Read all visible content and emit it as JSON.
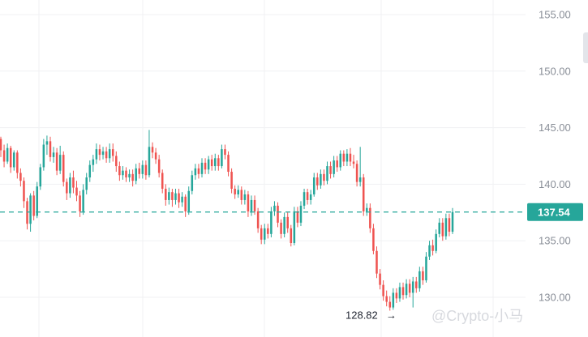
{
  "chart_data": {
    "type": "candlestick",
    "y_axis": {
      "ticks": [
        "155.00",
        "150.00",
        "145.00",
        "140.00",
        "135.00",
        "130.00"
      ],
      "ylim": [
        128.0,
        156.0
      ]
    },
    "grid": "vertical and horizontal, light",
    "colors": {
      "up": "#26a69a",
      "down": "#ef5350",
      "last_price": "#26a69a",
      "grid": "#f0f1f3"
    },
    "last_price": {
      "value": 137.54,
      "label": "137.54"
    },
    "low_marker": {
      "value": 128.82,
      "label": "128.82"
    },
    "candles": [
      [
        144.0,
        143.0,
        144.2,
        142.4
      ],
      [
        143.0,
        142.0,
        143.5,
        141.5
      ],
      [
        142.0,
        143.2,
        143.6,
        141.8
      ],
      [
        143.2,
        141.5,
        143.4,
        141.0
      ],
      [
        141.5,
        142.8,
        143.0,
        141.2
      ],
      [
        142.8,
        141.0,
        143.0,
        140.5
      ],
      [
        141.0,
        140.3,
        141.4,
        139.8
      ],
      [
        140.3,
        138.5,
        140.6,
        137.9
      ],
      [
        138.5,
        136.5,
        138.8,
        136.0
      ],
      [
        136.5,
        139.0,
        139.2,
        135.8
      ],
      [
        139.0,
        137.2,
        139.4,
        136.8
      ],
      [
        137.2,
        139.8,
        140.2,
        137.0
      ],
      [
        139.8,
        141.5,
        141.8,
        139.5
      ],
      [
        141.5,
        143.5,
        144.0,
        141.2
      ],
      [
        143.5,
        143.8,
        144.3,
        142.6
      ],
      [
        143.8,
        142.4,
        144.2,
        142.0
      ],
      [
        142.4,
        142.8,
        143.3,
        141.9
      ],
      [
        142.8,
        141.2,
        143.2,
        140.8
      ],
      [
        141.2,
        142.6,
        143.4,
        140.9
      ],
      [
        142.6,
        140.2,
        142.9,
        139.8
      ],
      [
        140.2,
        139.2,
        140.5,
        138.6
      ],
      [
        139.2,
        140.6,
        141.0,
        138.8
      ],
      [
        140.6,
        139.7,
        141.2,
        139.2
      ],
      [
        139.7,
        139.0,
        140.3,
        138.5
      ],
      [
        139.0,
        137.6,
        139.4,
        137.1
      ],
      [
        137.6,
        139.5,
        140.0,
        137.3
      ],
      [
        139.5,
        140.6,
        141.0,
        139.1
      ],
      [
        140.6,
        141.7,
        142.1,
        140.2
      ],
      [
        141.7,
        142.2,
        142.6,
        141.1
      ],
      [
        142.2,
        143.1,
        143.6,
        141.8
      ],
      [
        143.1,
        142.6,
        143.5,
        142.1
      ],
      [
        142.6,
        142.9,
        143.3,
        142.2
      ],
      [
        142.9,
        142.3,
        143.3,
        141.9
      ],
      [
        142.3,
        143.1,
        143.6,
        141.9
      ],
      [
        143.1,
        142.5,
        143.6,
        142.0
      ],
      [
        142.5,
        141.6,
        142.9,
        141.1
      ],
      [
        141.6,
        140.8,
        142.0,
        140.3
      ],
      [
        140.8,
        141.2,
        141.6,
        140.4
      ],
      [
        141.2,
        140.6,
        141.5,
        140.2
      ],
      [
        140.6,
        140.9,
        141.3,
        140.2
      ],
      [
        140.9,
        140.3,
        141.3,
        139.8
      ],
      [
        140.3,
        141.4,
        141.8,
        140.0
      ],
      [
        141.4,
        140.9,
        141.9,
        140.5
      ],
      [
        140.9,
        141.7,
        142.1,
        140.5
      ],
      [
        141.7,
        140.8,
        142.1,
        140.4
      ],
      [
        140.8,
        143.3,
        144.8,
        140.6
      ],
      [
        143.3,
        142.8,
        143.7,
        142.3
      ],
      [
        142.8,
        142.2,
        143.2,
        141.8
      ],
      [
        142.2,
        141.0,
        142.6,
        140.6
      ],
      [
        141.0,
        139.6,
        141.3,
        139.2
      ],
      [
        139.6,
        138.6,
        140.0,
        138.1
      ],
      [
        138.6,
        139.3,
        139.7,
        138.2
      ],
      [
        139.3,
        138.6,
        139.6,
        138.0
      ],
      [
        138.6,
        139.2,
        139.6,
        138.2
      ],
      [
        139.2,
        138.4,
        139.6,
        137.9
      ],
      [
        138.4,
        138.9,
        139.3,
        138.0
      ],
      [
        138.9,
        137.6,
        139.1,
        137.1
      ],
      [
        137.6,
        139.4,
        139.8,
        137.3
      ],
      [
        139.4,
        140.8,
        141.2,
        139.1
      ],
      [
        140.8,
        141.4,
        141.8,
        140.4
      ],
      [
        141.4,
        140.9,
        141.8,
        140.5
      ],
      [
        140.9,
        141.9,
        142.3,
        140.6
      ],
      [
        141.9,
        141.3,
        142.3,
        140.9
      ],
      [
        141.3,
        142.2,
        142.5,
        140.9
      ],
      [
        142.2,
        141.6,
        142.6,
        141.2
      ],
      [
        141.6,
        142.3,
        142.7,
        141.2
      ],
      [
        142.3,
        141.6,
        142.6,
        141.2
      ],
      [
        141.6,
        143.1,
        143.5,
        141.4
      ],
      [
        143.1,
        142.6,
        143.5,
        142.2
      ],
      [
        142.6,
        141.1,
        142.9,
        140.7
      ],
      [
        141.1,
        139.6,
        141.4,
        139.2
      ],
      [
        139.6,
        139.1,
        139.9,
        138.7
      ],
      [
        139.1,
        139.5,
        139.9,
        138.8
      ],
      [
        139.5,
        138.6,
        139.8,
        138.2
      ],
      [
        138.6,
        139.1,
        139.5,
        138.2
      ],
      [
        139.1,
        137.6,
        139.4,
        137.1
      ],
      [
        137.6,
        138.6,
        139.0,
        137.2
      ],
      [
        138.6,
        137.6,
        139.0,
        137.3
      ],
      [
        137.6,
        136.1,
        137.9,
        135.7
      ],
      [
        136.1,
        135.1,
        136.4,
        134.7
      ],
      [
        135.1,
        136.1,
        136.5,
        134.7
      ],
      [
        136.1,
        135.6,
        136.5,
        135.2
      ],
      [
        135.6,
        137.6,
        138.0,
        135.3
      ],
      [
        137.6,
        138.1,
        138.5,
        137.2
      ],
      [
        138.1,
        136.6,
        138.4,
        136.2
      ],
      [
        136.6,
        135.6,
        136.9,
        135.2
      ],
      [
        135.6,
        137.1,
        137.5,
        135.3
      ],
      [
        137.1,
        136.1,
        137.5,
        135.7
      ],
      [
        136.1,
        134.8,
        136.4,
        134.5
      ],
      [
        134.8,
        137.6,
        138.0,
        134.6
      ],
      [
        137.6,
        136.6,
        138.0,
        136.2
      ],
      [
        136.6,
        138.1,
        138.5,
        136.3
      ],
      [
        138.1,
        139.3,
        139.6,
        137.8
      ],
      [
        139.3,
        138.6,
        139.6,
        138.2
      ],
      [
        138.6,
        139.1,
        139.5,
        138.2
      ],
      [
        139.1,
        140.6,
        141.0,
        138.9
      ],
      [
        140.6,
        139.9,
        141.0,
        139.5
      ],
      [
        139.9,
        140.9,
        141.3,
        139.6
      ],
      [
        140.9,
        140.3,
        141.3,
        139.9
      ],
      [
        140.3,
        141.6,
        142.0,
        140.0
      ],
      [
        141.6,
        140.9,
        142.0,
        140.5
      ],
      [
        140.9,
        142.1,
        142.5,
        140.6
      ],
      [
        142.1,
        141.5,
        142.5,
        141.1
      ],
      [
        141.5,
        142.7,
        143.0,
        141.2
      ],
      [
        142.7,
        142.0,
        143.0,
        141.6
      ],
      [
        142.0,
        142.7,
        143.1,
        141.6
      ],
      [
        142.7,
        142.0,
        143.2,
        141.6
      ],
      [
        142.0,
        141.8,
        142.6,
        141.4
      ],
      [
        141.8,
        140.2,
        142.1,
        139.8
      ],
      [
        140.2,
        140.6,
        143.3,
        139.8
      ],
      [
        140.6,
        137.6,
        140.9,
        137.2
      ],
      [
        137.6,
        137.9,
        138.3,
        137.2
      ],
      [
        137.9,
        136.1,
        138.3,
        135.7
      ],
      [
        136.1,
        134.1,
        136.5,
        133.8
      ],
      [
        134.1,
        132.1,
        134.5,
        131.7
      ],
      [
        132.1,
        131.1,
        132.5,
        130.7
      ],
      [
        131.1,
        130.1,
        131.5,
        129.7
      ],
      [
        130.1,
        129.6,
        130.6,
        129.2
      ],
      [
        129.6,
        129.1,
        130.1,
        128.82
      ],
      [
        129.1,
        130.4,
        130.8,
        128.9
      ],
      [
        130.4,
        129.9,
        130.8,
        129.5
      ],
      [
        129.9,
        130.9,
        131.3,
        129.6
      ],
      [
        130.9,
        130.2,
        131.3,
        129.8
      ],
      [
        130.2,
        131.2,
        131.6,
        129.9
      ],
      [
        131.2,
        130.4,
        131.6,
        130.0
      ],
      [
        130.4,
        131.4,
        131.8,
        129.1
      ],
      [
        131.4,
        130.8,
        131.8,
        130.4
      ],
      [
        130.8,
        132.3,
        132.7,
        130.5
      ],
      [
        132.3,
        131.5,
        132.7,
        131.1
      ],
      [
        131.5,
        133.6,
        134.0,
        131.3
      ],
      [
        133.6,
        134.6,
        135.0,
        133.3
      ],
      [
        134.6,
        134.1,
        135.1,
        133.7
      ],
      [
        134.1,
        135.6,
        136.0,
        133.9
      ],
      [
        135.6,
        136.6,
        137.0,
        135.3
      ],
      [
        136.6,
        135.4,
        137.0,
        135.0
      ],
      [
        135.4,
        137.0,
        137.4,
        135.1
      ],
      [
        137.0,
        135.8,
        137.4,
        135.4
      ],
      [
        135.8,
        137.54,
        137.9,
        135.6
      ]
    ],
    "watermark": "@Crypto-小马"
  }
}
